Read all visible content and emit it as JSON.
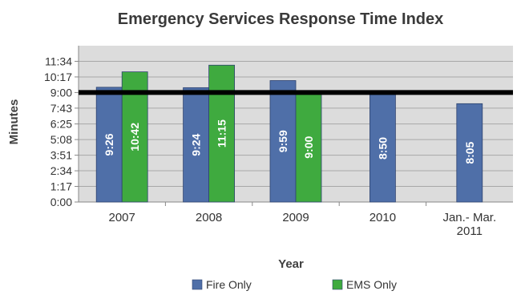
{
  "chart_data": {
    "type": "bar",
    "title": "Emergency Services Response Time Index",
    "xlabel": "Year",
    "ylabel": "Minutes",
    "categories": [
      [
        "2007"
      ],
      [
        "2008"
      ],
      [
        "2009"
      ],
      [
        "2010"
      ],
      [
        "Jan.- Mar.",
        "2011"
      ]
    ],
    "y_ticks": [
      "0:00",
      "1:17",
      "2:34",
      "3:51",
      "5:08",
      "6:25",
      "7:43",
      "9:00",
      "10:17",
      "11:34"
    ],
    "y_tick_values": [
      0,
      1.2833,
      2.5667,
      3.85,
      5.1333,
      6.4167,
      7.7167,
      9.0,
      10.2833,
      11.5667
    ],
    "ylim": [
      0,
      12.85
    ],
    "grid": true,
    "legend": "bottom",
    "reference_line": {
      "value": 9.0
    },
    "series": [
      {
        "name": "Fire Only",
        "color": "#4f6fa8",
        "values": [
          9.4333,
          9.4,
          9.9833,
          8.8333,
          8.0833
        ],
        "labels": [
          "9:26",
          "9:24",
          "9:59",
          "8:50",
          "8:05"
        ]
      },
      {
        "name": "EMS Only",
        "color": "#3faa3f",
        "values": [
          10.7,
          11.25,
          9.0,
          null,
          null
        ],
        "labels": [
          "10:42",
          "11:15",
          "9:00",
          null,
          null
        ]
      }
    ]
  }
}
